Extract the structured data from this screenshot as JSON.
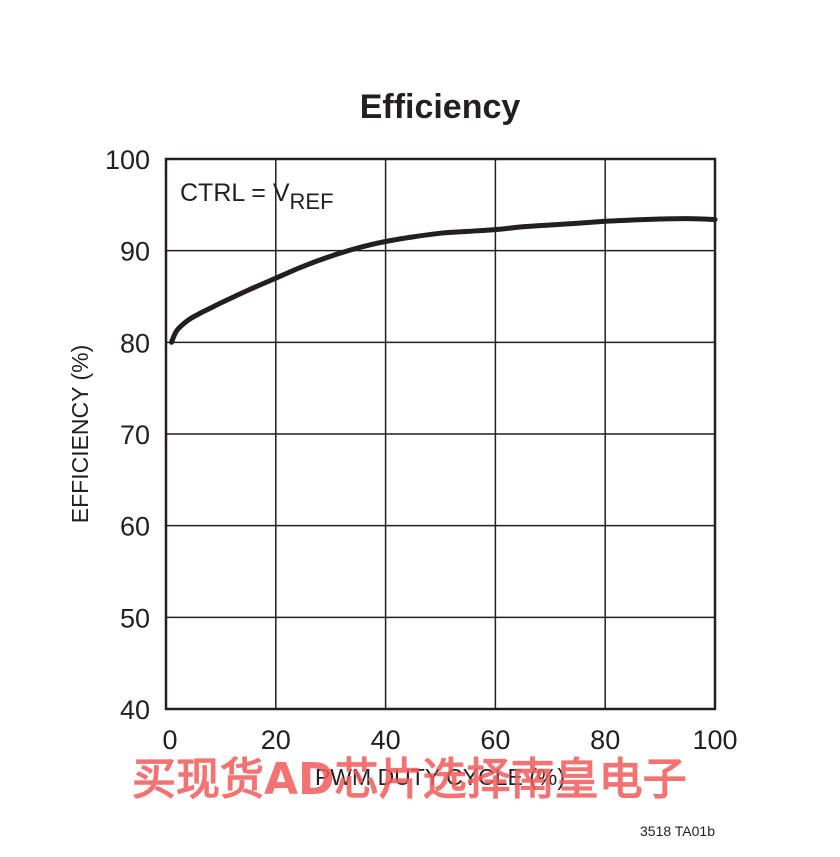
{
  "chart_data": {
    "type": "line",
    "title": "Efficiency",
    "xlabel": "PWM DUTY CYCLE (%)",
    "ylabel": "EFFICIENCY (%)",
    "xlim": [
      0,
      100
    ],
    "ylim": [
      40,
      100
    ],
    "x_ticks": [
      "0",
      "20",
      "40",
      "60",
      "80",
      "100"
    ],
    "y_ticks": [
      "40",
      "50",
      "60",
      "70",
      "80",
      "90",
      "100"
    ],
    "grid": true,
    "annotation": {
      "text": "CTRL = V",
      "subscript": "REF"
    },
    "series": [
      {
        "color": "#231f20",
        "x": [
          1,
          2,
          4,
          6,
          8,
          10,
          15,
          20,
          25,
          30,
          35,
          40,
          45,
          50,
          55,
          60,
          65,
          70,
          75,
          80,
          85,
          90,
          95,
          100
        ],
        "y": [
          80.0,
          81.3,
          82.4,
          83.1,
          83.7,
          84.3,
          85.7,
          87.0,
          88.3,
          89.4,
          90.3,
          91.0,
          91.5,
          91.9,
          92.1,
          92.3,
          92.6,
          92.8,
          93.0,
          93.2,
          93.35,
          93.45,
          93.5,
          93.4
        ]
      }
    ]
  },
  "figure_id": "3518 TA01b",
  "watermark": "买现货AD芯片选择南皇电子"
}
